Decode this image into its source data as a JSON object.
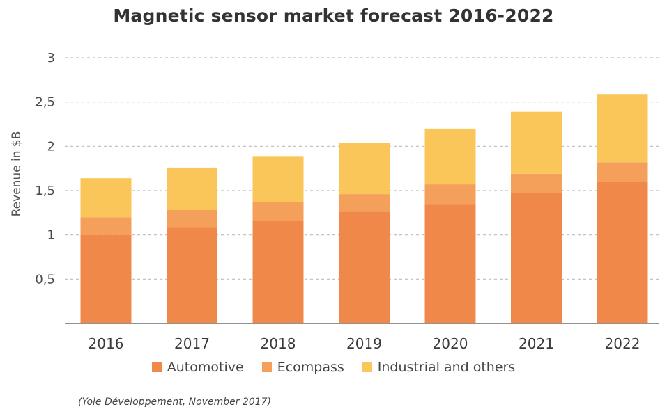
{
  "chart_data": {
    "type": "bar",
    "stacked": true,
    "title": "Magnetic sensor market forecast 2016-2022",
    "xlabel": "",
    "ylabel": "Revenue in $B",
    "categories": [
      "2016",
      "2017",
      "2018",
      "2019",
      "2020",
      "2021",
      "2022"
    ],
    "series": [
      {
        "name": "Automotive",
        "color": "#F0884A",
        "values": [
          1.0,
          1.08,
          1.16,
          1.26,
          1.35,
          1.47,
          1.6
        ]
      },
      {
        "name": "Ecompass",
        "color": "#F4A05A",
        "values": [
          0.2,
          0.2,
          0.21,
          0.2,
          0.22,
          0.22,
          0.22
        ]
      },
      {
        "name": "Industrial and others",
        "color": "#FAC65A",
        "values": [
          0.44,
          0.48,
          0.52,
          0.58,
          0.63,
          0.7,
          0.77
        ]
      }
    ],
    "ylim": [
      0,
      3
    ],
    "yticks": [
      0.5,
      1,
      1.5,
      2,
      2.5,
      3
    ],
    "ytick_labels": [
      "0,5",
      "1",
      "1,5",
      "2",
      "2,5",
      "3"
    ],
    "grid": true,
    "legend_position": "bottom"
  },
  "source_note": "(Yole Développement, November 2017)"
}
